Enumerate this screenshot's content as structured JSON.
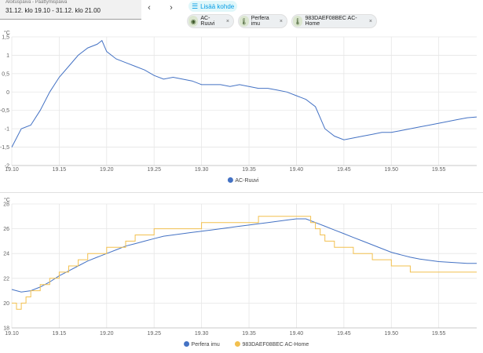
{
  "header": {
    "date_label": "Aloituspäivä - Päättymispäivä",
    "date_value": "31.12. klo 19.10 - 31.12. klo 21.00",
    "prev_icon": "‹",
    "next_icon": "›",
    "add_label": "Lisää kohde",
    "chips": [
      {
        "label": "AC-Ruuvi",
        "icon": "eye-icon"
      },
      {
        "label": "Perfera imu",
        "icon": "thermometer-icon"
      },
      {
        "label": "983DAEF08BEC AC-Home",
        "icon": "thermometer-icon"
      }
    ],
    "chip_close": "×"
  },
  "chart_data": [
    {
      "type": "line",
      "unit": "°C",
      "x_ticks": [
        "19.10",
        "19.15",
        "19.20",
        "19.25",
        "19.30",
        "19.35",
        "19.40",
        "19.45",
        "19.50",
        "19.55"
      ],
      "y_ticks": [
        "1,5",
        "1",
        "0,5",
        "0",
        "-0,5",
        "-1",
        "-1,5",
        "-2"
      ],
      "xlim": [
        19.1,
        19.59
      ],
      "ylim": [
        -2,
        1.5
      ],
      "grid": true,
      "legend_position": "bottom-center",
      "series": [
        {
          "name": "AC-Ruuvi",
          "color": "#4472c4",
          "x": [
            19.1,
            19.11,
            19.12,
            19.13,
            19.14,
            19.15,
            19.16,
            19.17,
            19.18,
            19.19,
            19.195,
            19.2,
            19.21,
            19.22,
            19.23,
            19.24,
            19.25,
            19.26,
            19.27,
            19.28,
            19.29,
            19.3,
            19.31,
            19.32,
            19.33,
            19.34,
            19.35,
            19.36,
            19.37,
            19.38,
            19.39,
            19.4,
            19.41,
            19.42,
            19.425,
            19.43,
            19.44,
            19.45,
            19.46,
            19.47,
            19.48,
            19.49,
            19.5,
            19.51,
            19.52,
            19.53,
            19.54,
            19.55,
            19.56,
            19.57,
            19.58,
            19.59
          ],
          "y": [
            -1.5,
            -1.0,
            -0.9,
            -0.5,
            0.0,
            0.4,
            0.7,
            1.0,
            1.2,
            1.3,
            1.4,
            1.1,
            0.9,
            0.8,
            0.7,
            0.6,
            0.45,
            0.35,
            0.4,
            0.35,
            0.3,
            0.2,
            0.2,
            0.2,
            0.15,
            0.2,
            0.15,
            0.1,
            0.1,
            0.05,
            0.0,
            -0.1,
            -0.2,
            -0.4,
            -0.7,
            -1.0,
            -1.2,
            -1.3,
            -1.25,
            -1.2,
            -1.15,
            -1.1,
            -1.1,
            -1.05,
            -1.0,
            -0.95,
            -0.9,
            -0.85,
            -0.8,
            -0.75,
            -0.7,
            -0.68
          ]
        }
      ]
    },
    {
      "type": "line",
      "unit": "°C",
      "x_ticks": [
        "19.10",
        "19.15",
        "19.20",
        "19.25",
        "19.30",
        "19.35",
        "19.40",
        "19.45",
        "19.50",
        "19.55"
      ],
      "y_ticks": [
        "28",
        "26",
        "24",
        "22",
        "20",
        "18"
      ],
      "xlim": [
        19.1,
        19.59
      ],
      "ylim": [
        18,
        28
      ],
      "grid": true,
      "legend_position": "bottom-center",
      "series": [
        {
          "name": "Perfera imu",
          "color": "#4472c4",
          "step": false,
          "x": [
            19.1,
            19.11,
            19.12,
            19.13,
            19.14,
            19.15,
            19.16,
            19.17,
            19.18,
            19.19,
            19.2,
            19.21,
            19.22,
            19.23,
            19.24,
            19.25,
            19.26,
            19.27,
            19.28,
            19.29,
            19.3,
            19.31,
            19.32,
            19.33,
            19.34,
            19.35,
            19.36,
            19.37,
            19.38,
            19.39,
            19.4,
            19.41,
            19.42,
            19.43,
            19.44,
            19.45,
            19.46,
            19.47,
            19.48,
            19.49,
            19.5,
            19.51,
            19.52,
            19.53,
            19.54,
            19.55,
            19.56,
            19.57,
            19.58,
            19.59
          ],
          "y": [
            21.1,
            20.9,
            21.0,
            21.3,
            21.7,
            22.2,
            22.6,
            23.0,
            23.4,
            23.7,
            24.0,
            24.3,
            24.6,
            24.8,
            25.0,
            25.2,
            25.4,
            25.5,
            25.6,
            25.7,
            25.8,
            25.9,
            26.0,
            26.1,
            26.2,
            26.3,
            26.4,
            26.5,
            26.6,
            26.7,
            26.8,
            26.8,
            26.5,
            26.2,
            25.9,
            25.6,
            25.3,
            25.0,
            24.7,
            24.4,
            24.1,
            23.9,
            23.7,
            23.55,
            23.45,
            23.35,
            23.3,
            23.25,
            23.2,
            23.2
          ]
        },
        {
          "name": "983DAEF08BEC AC-Home",
          "color": "#f2c04f",
          "step": true,
          "x": [
            19.1,
            19.105,
            19.11,
            19.115,
            19.12,
            19.13,
            19.14,
            19.15,
            19.16,
            19.17,
            19.18,
            19.19,
            19.2,
            19.21,
            19.22,
            19.23,
            19.24,
            19.25,
            19.26,
            19.27,
            19.28,
            19.3,
            19.32,
            19.34,
            19.36,
            19.38,
            19.4,
            19.415,
            19.42,
            19.425,
            19.43,
            19.44,
            19.45,
            19.46,
            19.47,
            19.48,
            19.5,
            19.52,
            19.54,
            19.56,
            19.59
          ],
          "y": [
            20.0,
            19.5,
            20.0,
            20.5,
            21.0,
            21.5,
            22.0,
            22.5,
            23.0,
            23.5,
            24.0,
            24.0,
            24.5,
            24.5,
            25.0,
            25.5,
            25.5,
            26.0,
            26.0,
            26.0,
            26.0,
            26.5,
            26.5,
            26.5,
            27.0,
            27.0,
            27.0,
            26.5,
            26.0,
            25.5,
            25.0,
            24.5,
            24.5,
            24.0,
            24.0,
            23.5,
            23.0,
            22.5,
            22.5,
            22.5,
            22.5
          ]
        }
      ]
    }
  ]
}
